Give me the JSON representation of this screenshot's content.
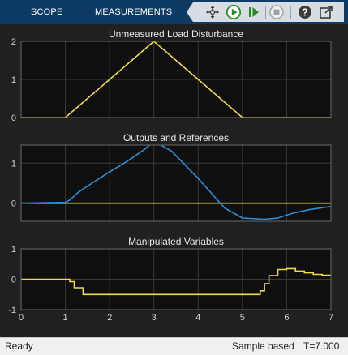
{
  "toolbar": {
    "tabs": [
      "SCOPE",
      "MEASUREMENTS"
    ],
    "icons": [
      "signal-select-icon",
      "run-icon",
      "step-forward-icon",
      "stop-icon",
      "help-icon",
      "undock-icon"
    ]
  },
  "status": {
    "state": "Ready",
    "mode": "Sample based",
    "time": "T=7.000"
  },
  "colors": {
    "toolbar_bg": "#0e3a66",
    "axes_bg": "#0f0f0f",
    "grid": "#3a3a3a",
    "yellow": "#eedc4c",
    "blue": "#2e8fd8"
  },
  "chart_data": [
    {
      "type": "line",
      "title": "Unmeasured Load Disturbance",
      "xlim": [
        0,
        7
      ],
      "ylim": [
        0,
        2
      ],
      "yticks": [
        0,
        1,
        2
      ],
      "xticks": [
        0,
        1,
        2,
        3,
        4,
        5,
        6,
        7
      ],
      "show_xtick_labels": false,
      "grid": true,
      "series": [
        {
          "color": "yellow",
          "x": [
            0,
            1,
            3,
            5,
            7
          ],
          "y": [
            0,
            0,
            2,
            0,
            0
          ]
        }
      ]
    },
    {
      "type": "line",
      "title": "Outputs and References",
      "xlim": [
        0,
        7
      ],
      "ylim": [
        -0.45,
        1.45
      ],
      "yticks": [
        0,
        1
      ],
      "xticks": [
        0,
        1,
        2,
        3,
        4,
        5,
        6,
        7
      ],
      "show_xtick_labels": false,
      "grid": true,
      "series": [
        {
          "color": "yellow",
          "x": [
            0,
            7
          ],
          "y": [
            0,
            0
          ]
        },
        {
          "color": "blue",
          "x": [
            0,
            0.5,
            1.0,
            1.1,
            1.3,
            1.6,
            2.0,
            2.4,
            2.8,
            3.0,
            3.4,
            4.0,
            4.6,
            5.0,
            5.5,
            5.8,
            6.1,
            6.5,
            7.0
          ],
          "y": [
            0,
            0.01,
            0.02,
            0.08,
            0.28,
            0.5,
            0.78,
            1.05,
            1.35,
            1.55,
            1.3,
            0.62,
            -0.12,
            -0.37,
            -0.4,
            -0.37,
            -0.26,
            -0.16,
            -0.08
          ]
        }
      ]
    },
    {
      "type": "line",
      "title": "Manipulated Variables",
      "xlim": [
        0,
        7
      ],
      "ylim": [
        -1,
        1
      ],
      "yticks": [
        -1,
        0,
        1
      ],
      "xticks": [
        0,
        1,
        2,
        3,
        4,
        5,
        6,
        7
      ],
      "xtick_labels": [
        "0",
        "1",
        "2",
        "3",
        "4",
        "5",
        "6",
        "7"
      ],
      "grid": true,
      "series": [
        {
          "color": "yellow",
          "step": true,
          "x": [
            0,
            1.1,
            1.2,
            1.4,
            5.4,
            5.5,
            5.6,
            5.8,
            6.0,
            6.2,
            6.4,
            6.6,
            6.8,
            7.0
          ],
          "y": [
            0,
            -0.08,
            -0.28,
            -0.5,
            -0.38,
            -0.15,
            0.12,
            0.32,
            0.35,
            0.27,
            0.21,
            0.16,
            0.13,
            0.1
          ]
        }
      ]
    }
  ]
}
